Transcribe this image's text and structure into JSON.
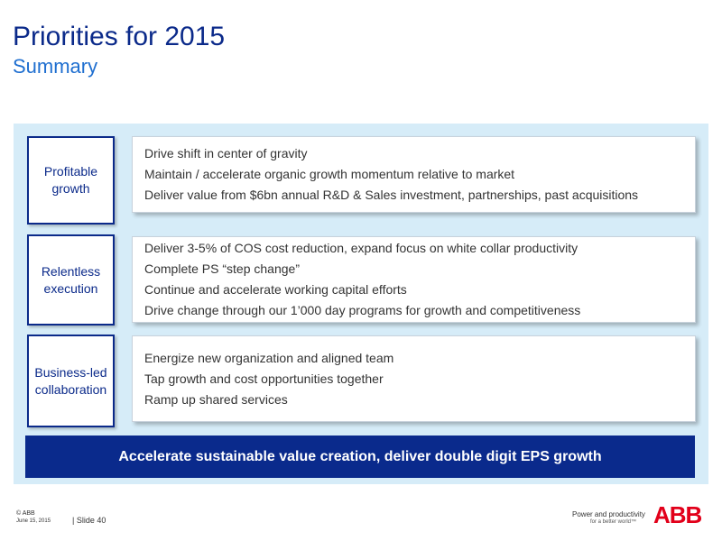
{
  "header": {
    "title": "Priorities for 2015",
    "subtitle": "Summary"
  },
  "rows": [
    {
      "label": "Profitable growth",
      "items": [
        "Drive shift in center of gravity",
        "Maintain / accelerate organic growth momentum relative to market",
        "Deliver value from $6bn annual R&D & Sales investment, partnerships, past acquisitions"
      ]
    },
    {
      "label": "Relentless execution",
      "items": [
        "Deliver 3-5% of COS cost reduction, expand focus on white collar productivity",
        "Complete PS “step change”",
        "Continue and accelerate working capital efforts",
        "Drive change through our 1’000 day programs for growth and competitiveness"
      ]
    },
    {
      "label": "Business-led collaboration",
      "items": [
        "Energize new organization and aligned team",
        "Tap growth and cost opportunities together",
        "Ramp up shared services"
      ]
    }
  ],
  "banner": "Accelerate sustainable value creation, deliver double digit EPS growth",
  "footer": {
    "copyright": "© ABB",
    "date": "June 15, 2015",
    "slide": "| Slide 40",
    "tagline1": "Power and productivity",
    "tagline2": "for a better world™",
    "logo": "ABB"
  }
}
